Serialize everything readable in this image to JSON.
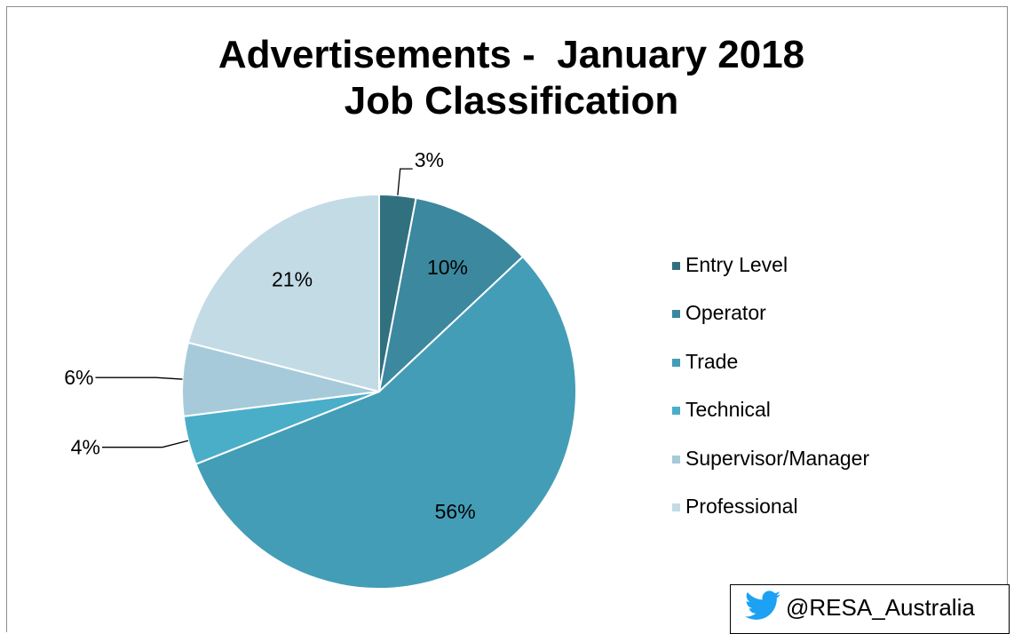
{
  "chart_data": {
    "type": "pie",
    "title": "Advertisements -  January 2018",
    "subtitle": "Job Classification",
    "categories": [
      "Entry Level",
      "Operator",
      "Trade",
      "Technical",
      "Supervisor/Manager",
      "Professional"
    ],
    "values": [
      3,
      10,
      56,
      4,
      6,
      21
    ],
    "data_labels": [
      "3%",
      "10%",
      "56%",
      "4%",
      "6%",
      "21%"
    ],
    "colors": [
      "#31707f",
      "#3b889f",
      "#449db6",
      "#4aaec9",
      "#a6cad9",
      "#c3dbe5"
    ],
    "legend_position": "right",
    "start_angle": "12 o'clock, clockwise"
  },
  "footer": {
    "handle": "@RESA_Australia",
    "icon": "twitter-bird-icon",
    "icon_color": "#1da1f2"
  }
}
